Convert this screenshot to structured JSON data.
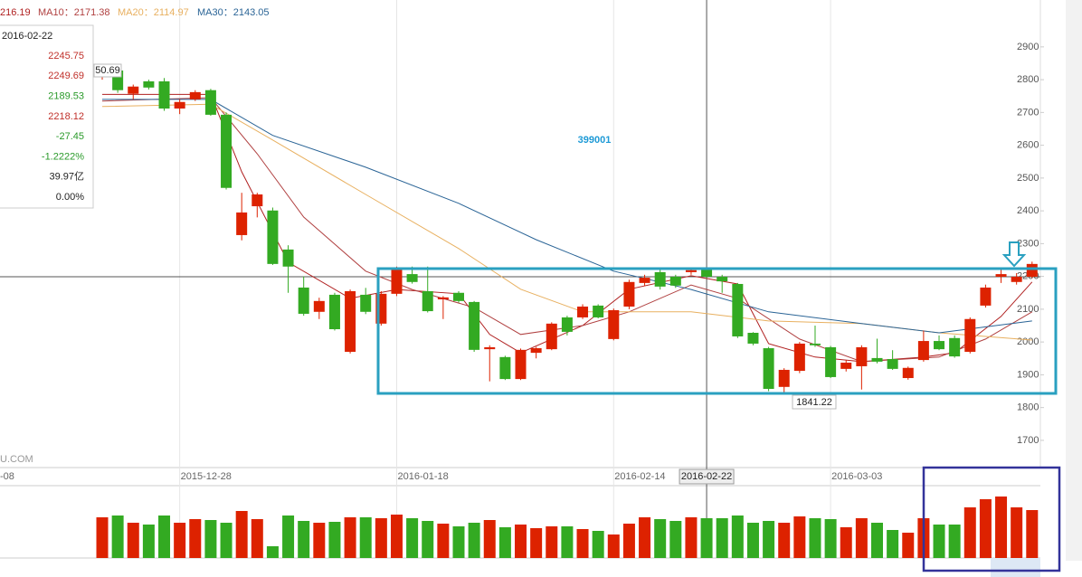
{
  "chart_data": {
    "type": "candlestick",
    "title": "399001",
    "legend": {
      "series": [
        {
          "name": "216.19",
          "color": "#b02020"
        },
        {
          "name": "MA10：2171.38",
          "color": "#b04040"
        },
        {
          "name": "MA20：2114.97",
          "color": "#e8b060"
        },
        {
          "name": "MA30：2143.05",
          "color": "#2a6496"
        }
      ]
    },
    "info": {
      "date": "2016-02-22",
      "items": [
        {
          "text": "2245.75",
          "color": "#c0302a"
        },
        {
          "text": "2249.69",
          "color": "#c0302a"
        },
        {
          "text": "2189.53",
          "color": "#2a9a2a"
        },
        {
          "text": "2218.12",
          "color": "#c0302a"
        },
        {
          "text": "-27.45",
          "color": "#2a9a2a"
        },
        {
          "text": "-1.2222%",
          "color": "#2a9a2a"
        },
        {
          "text": "39.97亿",
          "color": "#222"
        },
        {
          "text": "0.00%",
          "color": "#222"
        }
      ]
    },
    "annotations": {
      "high_label": "50.69",
      "low_label": "1841.22",
      "watermark": "U.COM",
      "cut_date": "-08"
    },
    "up_color": "#dd2200",
    "down_color": "#33aa22",
    "categories": [
      null,
      null,
      null,
      null,
      null,
      "2015-12-28",
      null,
      null,
      null,
      null,
      null,
      null,
      null,
      null,
      null,
      null,
      null,
      null,
      null,
      "2016-01-18",
      null,
      null,
      null,
      null,
      null,
      null,
      null,
      null,
      null,
      null,
      null,
      null,
      null,
      "2016-02-14",
      null,
      null,
      null,
      null,
      null,
      "2016-02-22",
      null,
      null,
      null,
      null,
      null,
      null,
      null,
      "2016-03-03",
      null,
      null,
      null,
      null,
      null,
      null,
      null,
      null,
      null,
      null,
      null,
      null,
      null
    ],
    "open": [
      2809,
      2828,
      2757,
      2795,
      2795,
      2712,
      2740,
      2768,
      2693,
      2326,
      2414,
      2401,
      2282,
      2166,
      2092,
      2144,
      1970,
      2144,
      2056,
      2147,
      2207,
      2155,
      2130,
      2150,
      2122,
      1978,
      1954,
      1887,
      1967,
      1978,
      2075,
      2075,
      2111,
      2009,
      2108,
      2180,
      2213,
      2199,
      2213,
      2221,
      2199,
      2177,
      2028,
      1981,
      1863,
      1912,
      1995,
      1984,
      1918,
      1926,
      1951,
      1948,
      1890,
      1945,
      2003,
      2012,
      1970,
      2111,
      2199,
      2183,
      2199
    ],
    "high": [
      2830,
      2835,
      2785,
      2800,
      2805,
      2740,
      2768,
      2772,
      2700,
      2455,
      2455,
      2410,
      2295,
      2200,
      2135,
      2150,
      2160,
      2165,
      2155,
      2230,
      2230,
      2230,
      2140,
      2155,
      2125,
      1990,
      1958,
      1980,
      1985,
      2060,
      2080,
      2115,
      2115,
      2102,
      2190,
      2205,
      2220,
      2205,
      2225,
      2228,
      2205,
      2180,
      2030,
      1985,
      1920,
      2000,
      2050,
      1988,
      1945,
      1990,
      2010,
      1975,
      1925,
      2035,
      2020,
      2020,
      2075,
      2175,
      2225,
      2210,
      2245
    ],
    "low": [
      2800,
      2760,
      2740,
      2770,
      2705,
      2695,
      2735,
      2690,
      2465,
      2310,
      2380,
      2235,
      2150,
      2080,
      2070,
      2035,
      1965,
      2085,
      2050,
      2140,
      2178,
      2090,
      2070,
      2120,
      1970,
      1880,
      1884,
      1884,
      1950,
      1975,
      2020,
      2070,
      2072,
      2005,
      2100,
      2170,
      2160,
      2165,
      2205,
      2195,
      2150,
      2012,
      1990,
      1850,
      1841.22,
      1905,
      1985,
      1890,
      1910,
      1855,
      1935,
      1915,
      1885,
      1940,
      1975,
      1952,
      1965,
      2105,
      2180,
      2175,
      2195
    ],
    "close": [
      2823,
      2768,
      2779,
      2776,
      2712,
      2732,
      2762,
      2693,
      2470,
      2395,
      2450,
      2238,
      2230,
      2086,
      2125,
      2039,
      2155,
      2092,
      2147,
      2221,
      2183,
      2094,
      2136,
      2125,
      1976,
      1984,
      1887,
      1976,
      1981,
      2056,
      2031,
      2108,
      2075,
      2097,
      2183,
      2196,
      2169,
      2172,
      2219,
      2199,
      2185,
      2017,
      1995,
      1857,
      1915,
      1995,
      1990,
      1893,
      1937,
      1984,
      1940,
      1918,
      1921,
      2003,
      1978,
      1956,
      2070,
      2166,
      2207,
      2199,
      2238
    ],
    "volume": [
      45,
      47,
      39,
      37,
      47,
      39,
      43,
      42,
      39,
      52,
      43,
      13,
      47,
      41,
      39,
      40,
      45,
      45,
      44,
      48,
      44,
      41,
      38,
      35,
      39,
      42,
      34,
      37,
      33,
      35,
      35,
      32,
      30,
      26,
      38,
      45,
      43,
      41,
      45,
      44,
      44,
      47,
      39,
      41,
      39,
      46,
      44,
      43,
      34,
      44,
      39,
      31,
      28,
      44,
      37,
      37,
      56,
      65,
      68,
      56,
      53
    ],
    "series": [
      {
        "x": [
          0,
          7,
          9,
          12,
          16,
          19,
          23,
          25,
          27,
          31,
          34,
          38,
          41,
          43,
          46,
          49,
          53,
          55,
          58,
          60
        ],
        "values": [
          2755,
          2755,
          2519,
          2243,
          2133,
          2160,
          2147,
          2023,
          1967,
          2050,
          2161,
          2202,
          2177,
          1995,
          1954,
          1940,
          1954,
          1967,
          2078,
          2183
        ]
      },
      {
        "x": [
          0,
          7,
          10,
          13,
          17,
          20,
          24,
          27,
          31,
          34,
          38,
          41,
          45,
          49,
          54,
          57,
          60
        ],
        "values": [
          2735,
          2745,
          2574,
          2381,
          2216,
          2160,
          2105,
          2023,
          2050,
          2092,
          2174,
          2133,
          2009,
          1940,
          1954,
          2009,
          2092
        ]
      },
      {
        "x": [
          0,
          7,
          11,
          17,
          23,
          27,
          31,
          38,
          43,
          49,
          54,
          60
        ],
        "values": [
          2718,
          2725,
          2616,
          2450,
          2285,
          2161,
          2092,
          2092,
          2064,
          2056,
          2028,
          2006
        ]
      },
      {
        "x": [
          0,
          7,
          11,
          17,
          23,
          28,
          33,
          38,
          43,
          49,
          54,
          60
        ],
        "values": [
          2740,
          2740,
          2630,
          2533,
          2423,
          2312,
          2216,
          2160,
          2092,
          2056,
          2028,
          2064
        ]
      }
    ],
    "ylim": [
      1617,
      3043
    ],
    "yticks": [
      1700,
      1800,
      1900,
      2000,
      2100,
      2200,
      2300,
      2400,
      2500,
      2600,
      2700,
      2800,
      2900
    ]
  }
}
